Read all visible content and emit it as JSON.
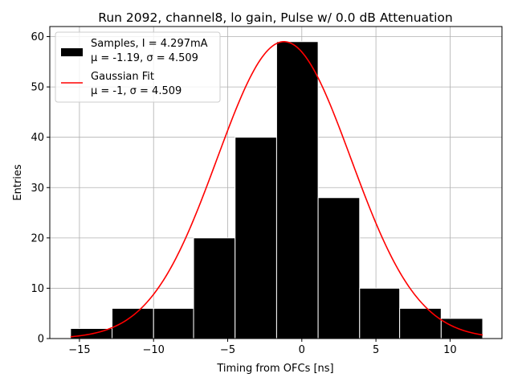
{
  "chart_data": {
    "type": "bar",
    "title": "Run 2092, channel8, lo gain, Pulse w/ 0.0 dB Attenuation",
    "xlabel": "Timing from OFCs [ns]",
    "ylabel": "Entries",
    "xlim": [
      -17,
      13.5
    ],
    "ylim": [
      0,
      62
    ],
    "xticks": [
      -15,
      -10,
      -5,
      0,
      5,
      10
    ],
    "yticks": [
      0,
      10,
      20,
      30,
      40,
      50,
      60
    ],
    "grid": true,
    "legend_position": "top-left",
    "histogram": {
      "name": "Samples",
      "bin_edges": [
        -15.6,
        -12.8,
        -10.0,
        -7.3,
        -4.5,
        -1.7,
        1.1,
        3.9,
        6.6,
        9.4,
        12.2
      ],
      "values": [
        2,
        6,
        6,
        20,
        40,
        59,
        28,
        10,
        6,
        4
      ],
      "color": "#000000"
    },
    "fit": {
      "name": "Gaussian Fit",
      "mu": -1.2,
      "sigma": 4.509,
      "amplitude": 59,
      "x_range": [
        -15.6,
        12.2
      ],
      "color": "#ff0000"
    },
    "legend": [
      {
        "line1": "Samples, I = 4.297mA",
        "line2": "μ = -1.19, σ = 4.509"
      },
      {
        "line1": "Gaussian Fit",
        "line2": "μ = -1, σ = 4.509"
      }
    ]
  }
}
